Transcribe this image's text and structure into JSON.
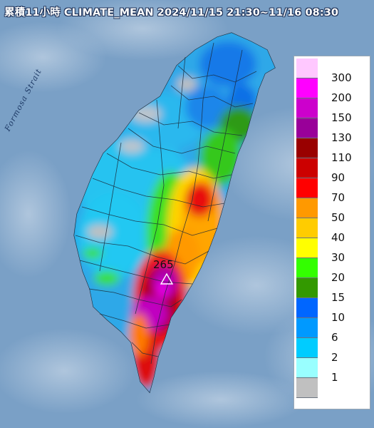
{
  "title": "累積11小時 CLIMATE_MEAN 2024/11/15 21:30~11/16 08:30",
  "strait_label": "Formosa Strait",
  "max_marker": {
    "value": "265",
    "icon": "triangle-icon"
  },
  "legend": [
    {
      "label": "300",
      "color": "#ffc8ff"
    },
    {
      "label": "200",
      "color": "#ff00ff"
    },
    {
      "label": "150",
      "color": "#cc00cc"
    },
    {
      "label": "130",
      "color": "#990099"
    },
    {
      "label": "110",
      "color": "#990000"
    },
    {
      "label": "90",
      "color": "#cc0000"
    },
    {
      "label": "70",
      "color": "#ff0000"
    },
    {
      "label": "50",
      "color": "#ff9900"
    },
    {
      "label": "40",
      "color": "#ffcc00"
    },
    {
      "label": "30",
      "color": "#ffff00"
    },
    {
      "label": "20",
      "color": "#33ff00"
    },
    {
      "label": "15",
      "color": "#339900"
    },
    {
      "label": "10",
      "color": "#0066ff"
    },
    {
      "label": "6",
      "color": "#0099ff"
    },
    {
      "label": "2",
      "color": "#00ccff"
    },
    {
      "label": "1",
      "color": "#99ffff"
    },
    {
      "label": "",
      "color": "#c0c0c0"
    }
  ]
}
